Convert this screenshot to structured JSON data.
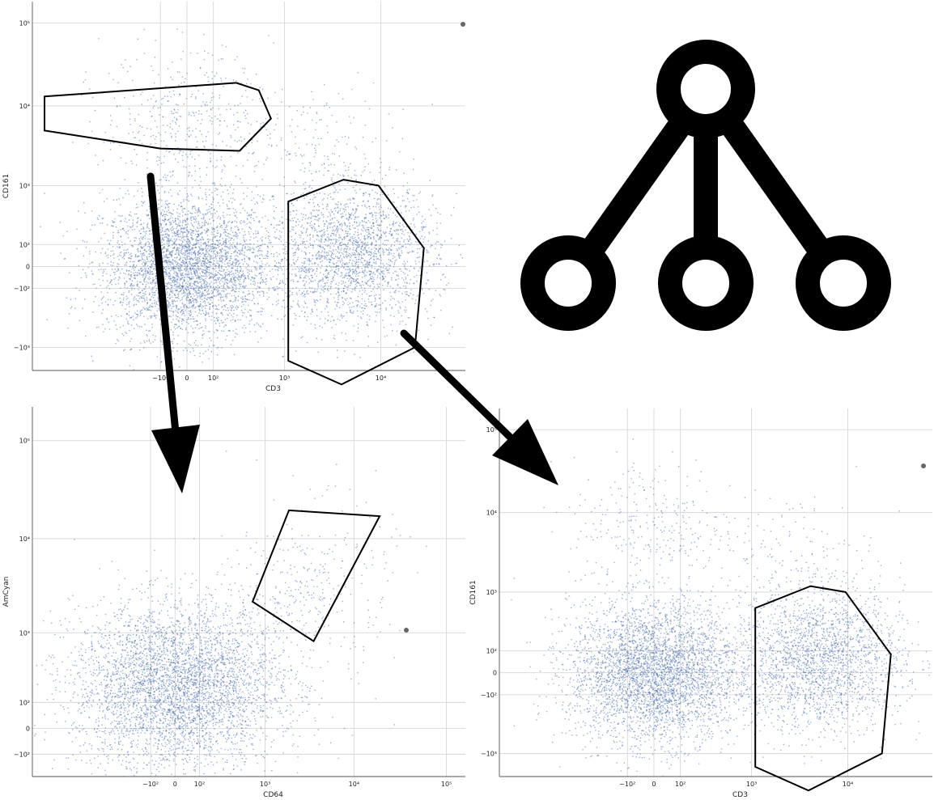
{
  "figure": {
    "arrow_color": "#000000",
    "gate_color": "#000000",
    "point_color": "#4a6fb5",
    "icon": "hierarchy-tree-icon"
  },
  "chart_data": [
    {
      "type": "scatter",
      "title": "",
      "xlabel": "CD3",
      "ylabel": "CD161",
      "x_ticks": [
        "−10²",
        "0",
        "10²",
        "10³",
        "10⁴"
      ],
      "y_ticks": [
        "10⁵",
        "10⁴",
        "10³",
        "10²",
        "0",
        "−10²",
        "−10³"
      ],
      "grid": true,
      "clusters": [
        {
          "name": "",
          "cx": 0,
          "cy": 0,
          "n": 3800
        },
        {
          "name": "",
          "cx": 5000,
          "cy": 50,
          "n": 2200
        },
        {
          "name": "",
          "cx": 0,
          "cy": 7000,
          "n": 450
        },
        {
          "name": "",
          "cx": 2500,
          "cy": 2500,
          "n": 180
        }
      ],
      "gates": [
        {
          "points": [
            [
              -3000,
              13000
            ],
            [
              250,
              19000
            ],
            [
              500,
              15500
            ],
            [
              700,
              7000
            ],
            [
              280,
              2800
            ],
            [
              -100,
              3000
            ],
            [
              -3000,
              5000
            ]
          ]
        },
        {
          "points": [
            [
              1100,
              600
            ],
            [
              4200,
              1200
            ],
            [
              9500,
              1000
            ],
            [
              27000,
              80
            ],
            [
              22000,
              -1000
            ],
            [
              4000,
              -3000
            ],
            [
              1100,
              -1500
            ]
          ]
        }
      ]
    },
    {
      "type": "scatter",
      "title": "",
      "xlabel": "CD64",
      "ylabel": "AmCyan",
      "x_ticks": [
        "−10²",
        "0",
        "10²",
        "10³",
        "10⁴",
        "10⁵"
      ],
      "y_ticks": [
        "10⁵",
        "10⁴",
        "10³",
        "10²",
        "0",
        "−10²"
      ],
      "grid": true,
      "clusters": [
        {
          "name": "",
          "cx": 0,
          "cy": 200,
          "n": 4200
        },
        {
          "name": "",
          "cx": 4000,
          "cy": 3500,
          "n": 260
        },
        {
          "name": "",
          "cx": 900,
          "cy": 800,
          "n": 200
        }
      ],
      "gates": [
        {
          "points": [
            [
              700,
              2200
            ],
            [
              1900,
              19500
            ],
            [
              19000,
              17000
            ],
            [
              7000,
              2800
            ],
            [
              3600,
              800
            ]
          ]
        }
      ]
    },
    {
      "type": "scatter",
      "title": "",
      "xlabel": "CD3",
      "ylabel": "CD161",
      "x_ticks": [
        "−10²",
        "0",
        "10²",
        "10³",
        "10⁴"
      ],
      "y_ticks": [
        "10⁵",
        "10⁴",
        "10³",
        "10²",
        "0",
        "−10²",
        "−10³"
      ],
      "grid": true,
      "clusters": [
        {
          "name": "",
          "cx": 0,
          "cy": 0,
          "n": 3800
        },
        {
          "name": "",
          "cx": 5000,
          "cy": 50,
          "n": 2200
        },
        {
          "name": "",
          "cx": 0,
          "cy": 7000,
          "n": 300
        },
        {
          "name": "",
          "cx": 2500,
          "cy": 2500,
          "n": 160
        }
      ],
      "gates": [
        {
          "points": [
            [
              1100,
              600
            ],
            [
              4200,
              1200
            ],
            [
              9500,
              1000
            ],
            [
              27000,
              80
            ],
            [
              22000,
              -1000
            ],
            [
              4000,
              -3000
            ],
            [
              1100,
              -1500
            ]
          ]
        }
      ]
    }
  ]
}
